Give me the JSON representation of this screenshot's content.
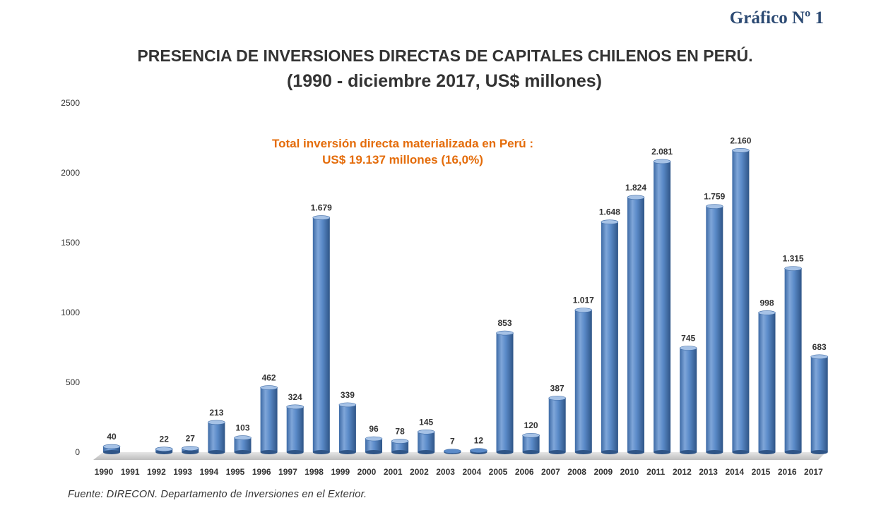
{
  "header": {
    "chart_number": "Gráfico Nº 1",
    "title_line1": "PRESENCIA DE INVERSIONES DIRECTAS  DE CAPITALES CHILENOS EN PERÚ.",
    "title_line2": "(1990 - diciembre 2017, US$ millones)"
  },
  "footer": {
    "source": "Fuente:  DIRECON.  Departamento  de Inversiones  en el Exterior."
  },
  "colors": {
    "bar": "#4f81bd",
    "bar_light": "#a6c2e6",
    "bar_dark": "#2f5587",
    "annotation": "#e46c0a",
    "label": "#333333"
  },
  "chart_data": {
    "type": "bar",
    "title": "PRESENCIA DE INVERSIONES DIRECTAS  DE CAPITALES CHILENOS EN PERÚ. (1990 - diciembre 2017, US$ millones)",
    "xlabel": "",
    "ylabel": "",
    "ylim": [
      0,
      2500
    ],
    "yticks": [
      0,
      500,
      1000,
      1500,
      2000,
      2500
    ],
    "grid": false,
    "categories": [
      "1990",
      "1991",
      "1992",
      "1993",
      "1994",
      "1995",
      "1996",
      "1997",
      "1998",
      "1999",
      "2000",
      "2001",
      "2002",
      "2003",
      "2004",
      "2005",
      "2006",
      "2007",
      "2008",
      "2009",
      "2010",
      "2011",
      "2012",
      "2013",
      "2014",
      "2015",
      "2016",
      "2017"
    ],
    "values": [
      40,
      null,
      22,
      27,
      213,
      103,
      462,
      324,
      1679,
      339,
      96,
      78,
      145,
      7,
      12,
      853,
      120,
      387,
      1017,
      1648,
      1824,
      2081,
      745,
      1759,
      2160,
      998,
      1315,
      683
    ],
    "data_labels": [
      "40",
      "",
      "22",
      "27",
      "213",
      "103",
      "462",
      "324",
      "1.679",
      "339",
      "96",
      "78",
      "145",
      "7",
      "12",
      "853",
      "120",
      "387",
      "1.017",
      "1.648",
      "1.824",
      "2.081",
      "745",
      "1.759",
      "2.160",
      "998",
      "1.315",
      "683"
    ],
    "annotation": {
      "line1": "Total inversión directa materializada en Perú :",
      "line2": "US$ 19.137 millones (16,0%)"
    }
  }
}
